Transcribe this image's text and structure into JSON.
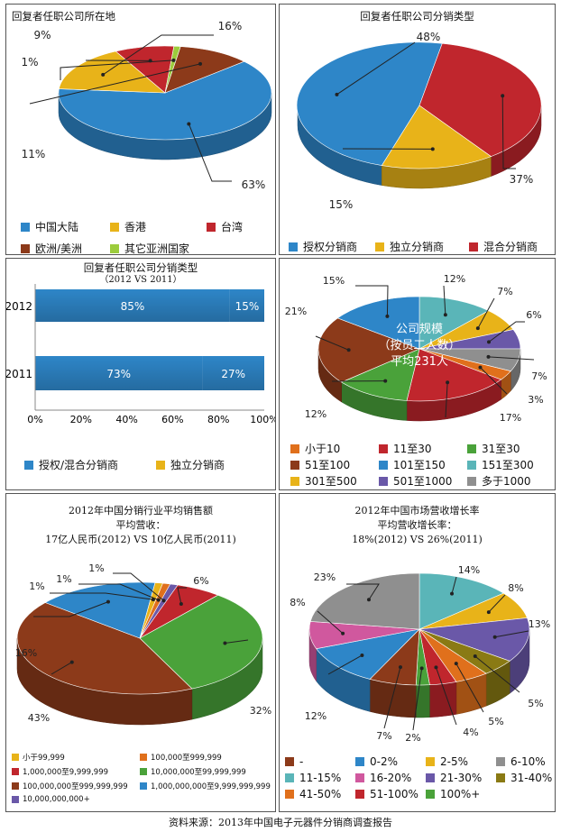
{
  "colors": {
    "blue": "#2e86c8",
    "yellow": "#e8b319",
    "red": "#c0262d",
    "brown": "#8c3a1a",
    "lightgreen": "#9ccc3c",
    "green": "#4aa23a",
    "orange": "#e0701c",
    "teal": "#5ab5b8",
    "purple": "#6a58a8",
    "gray": "#8f8f8f",
    "pink": "#d0589e",
    "olive": "#8a7a14",
    "darkblue": "#2a6db0"
  },
  "footer": "资料来源：2013年中国电子元器件分销商调查报告",
  "chart_data": [
    {
      "id": "location",
      "type": "pie",
      "title": "回复者任职公司所在地",
      "series": [
        {
          "name": "中国大陆",
          "value": 63,
          "label": "63%",
          "color": "blue"
        },
        {
          "name": "香港",
          "value": 16,
          "label": "16%",
          "color": "yellow"
        },
        {
          "name": "台湾",
          "value": 9,
          "label": "9%",
          "color": "red"
        },
        {
          "name": "其它亚洲国家",
          "value": 1,
          "label": "1%",
          "color": "lightgreen"
        },
        {
          "name": "欧洲/美洲",
          "value": 11,
          "label": "11%",
          "color": "brown"
        }
      ],
      "legend": [
        "中国大陆",
        "香港",
        "台湾",
        "欧洲/美洲",
        "其它亚洲国家"
      ]
    },
    {
      "id": "dist_type",
      "type": "pie",
      "title": "回复者任职公司分销类型",
      "series": [
        {
          "name": "授权分销商",
          "value": 48,
          "label": "48%",
          "color": "blue"
        },
        {
          "name": "混合分销商",
          "value": 37,
          "label": "37%",
          "color": "red"
        },
        {
          "name": "独立分销商",
          "value": 15,
          "label": "15%",
          "color": "yellow"
        }
      ],
      "legend": [
        "授权分销商",
        "独立分销商",
        "混合分销商"
      ]
    },
    {
      "id": "dist_type_years",
      "type": "bar",
      "orientation": "horizontal",
      "stacked": true,
      "title": "回复者任职公司分销类型",
      "subtitle": "（2012 VS 2011）",
      "categories": [
        "2012",
        "2011"
      ],
      "series": [
        {
          "name": "授权/混合分销商",
          "values": [
            85,
            73
          ],
          "labels": [
            "85%",
            "73%"
          ],
          "color": "blue"
        },
        {
          "name": "独立分销商",
          "values": [
            15,
            27
          ],
          "labels": [
            "15%",
            "27%"
          ],
          "color": "yellow"
        }
      ],
      "xlim": [
        0,
        100
      ],
      "xticks": [
        "0%",
        "20%",
        "40%",
        "60%",
        "80%",
        "100%"
      ]
    },
    {
      "id": "company_size",
      "type": "pie",
      "center_label": [
        "公司规模",
        "（按员工人数）",
        "平均231人"
      ],
      "series": [
        {
          "name": "151至300",
          "value": 12,
          "label": "12%",
          "color": "teal"
        },
        {
          "name": "301至500",
          "value": 7,
          "label": "7%",
          "color": "yellow"
        },
        {
          "name": "501至1000",
          "value": 6,
          "label": "6%",
          "color": "purple"
        },
        {
          "name": "多于1000",
          "value": 7,
          "label": "7%",
          "color": "gray"
        },
        {
          "name": "小于10",
          "value": 3,
          "label": "3%",
          "color": "orange"
        },
        {
          "name": "11至30",
          "value": 17,
          "label": "17%",
          "color": "red"
        },
        {
          "name": "31至30",
          "value": 12,
          "label": "12%",
          "color": "green"
        },
        {
          "name": "51至100",
          "value": 21,
          "label": "21%",
          "color": "brown"
        },
        {
          "name": "101至150",
          "value": 15,
          "label": "15%",
          "color": "blue"
        }
      ],
      "legend": [
        "小于10",
        "11至30",
        "31至30",
        "51至100",
        "101至150",
        "151至300",
        "301至500",
        "501至1000",
        "多于1000"
      ]
    },
    {
      "id": "avg_sales",
      "type": "pie",
      "title": [
        "2012年中国分销行业平均销售额",
        "平均营收：",
        "17亿人民币(2012) VS 10亿人民币(2011)"
      ],
      "series": [
        {
          "name": "1,000,000至9,999,999",
          "value": 6,
          "label": "6%",
          "color": "red"
        },
        {
          "name": "10,000,000至99,999,999",
          "value": 32,
          "label": "32%",
          "color": "green"
        },
        {
          "name": "100,000,000至999,999,999",
          "value": 43,
          "label": "43%",
          "color": "brown"
        },
        {
          "name": "1,000,000,000至9,999,999,999",
          "value": 16,
          "label": "16%",
          "color": "blue"
        },
        {
          "name": "小于99,999",
          "value": 1,
          "label": "1%",
          "color": "yellow"
        },
        {
          "name": "100,000至999,999",
          "value": 1,
          "label": "1%",
          "color": "orange"
        },
        {
          "name": "10,000,000,000+",
          "value": 1,
          "label": "1%",
          "color": "purple"
        }
      ],
      "legend": [
        "小于99,999",
        "100,000至999,999",
        "1,000,000至9,999,999",
        "10,000,000至99,999,999",
        "100,000,000至999,999,999",
        "1,000,000,000至9,999,999,999",
        "10,000,000,000+"
      ]
    },
    {
      "id": "growth",
      "type": "pie",
      "title": [
        "2012年中国市场营收增长率",
        "平均营收增长率：",
        "18%(2012) VS 26%(2011)"
      ],
      "series": [
        {
          "name": "11-15%",
          "value": 14,
          "label": "14%",
          "color": "teal"
        },
        {
          "name": "2-5%",
          "value": 8,
          "label": "8%",
          "color": "yellow"
        },
        {
          "name": "21-30%",
          "value": 13,
          "label": "13%",
          "color": "purple"
        },
        {
          "name": "31-40%",
          "value": 5,
          "label": "5%",
          "color": "olive"
        },
        {
          "name": "41-50%",
          "value": 5,
          "label": "5%",
          "color": "orange"
        },
        {
          "name": "51-100%",
          "value": 4,
          "label": "4%",
          "color": "red"
        },
        {
          "name": "100%+",
          "value": 2,
          "label": "2%",
          "color": "green"
        },
        {
          "name": "-",
          "value": 7,
          "label": "7%",
          "color": "brown"
        },
        {
          "name": "0-2%",
          "value": 12,
          "label": "12%",
          "color": "blue"
        },
        {
          "name": "16-20%",
          "value": 8,
          "label": "8%",
          "color": "pink"
        },
        {
          "name": "6-10%",
          "value": 23,
          "label": "23%",
          "color": "gray"
        }
      ],
      "legend": [
        "-",
        "0-2%",
        "2-5%",
        "6-10%",
        "11-15%",
        "16-20%",
        "21-30%",
        "31-40%",
        "41-50%",
        "51-100%",
        "100%+"
      ]
    }
  ]
}
